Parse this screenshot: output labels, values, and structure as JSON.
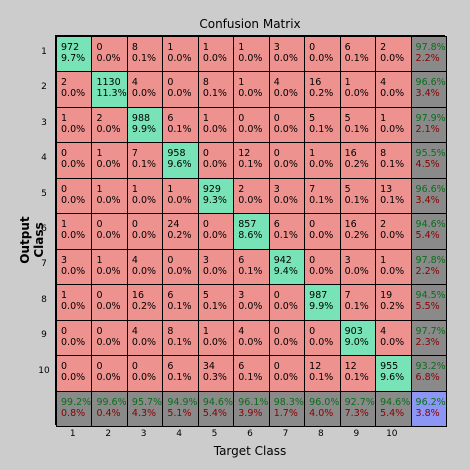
{
  "chart_data": {
    "type": "heatmap",
    "title": "Confusion Matrix",
    "xlabel": "Target Class",
    "ylabel": "Output Class",
    "x_ticks": [
      "1",
      "2",
      "3",
      "4",
      "5",
      "6",
      "7",
      "8",
      "9",
      "10"
    ],
    "y_ticks": [
      "1",
      "2",
      "3",
      "4",
      "5",
      "6",
      "7",
      "8",
      "9",
      "10"
    ],
    "cells": [
      [
        [
          "972",
          "9.7%"
        ],
        [
          "0",
          "0.0%"
        ],
        [
          "8",
          "0.1%"
        ],
        [
          "1",
          "0.0%"
        ],
        [
          "1",
          "0.0%"
        ],
        [
          "1",
          "0.0%"
        ],
        [
          "3",
          "0.0%"
        ],
        [
          "0",
          "0.0%"
        ],
        [
          "6",
          "0.1%"
        ],
        [
          "2",
          "0.0%"
        ]
      ],
      [
        [
          "2",
          "0.0%"
        ],
        [
          "1130",
          "11.3%"
        ],
        [
          "4",
          "0.0%"
        ],
        [
          "0",
          "0.0%"
        ],
        [
          "8",
          "0.1%"
        ],
        [
          "1",
          "0.0%"
        ],
        [
          "4",
          "0.0%"
        ],
        [
          "16",
          "0.2%"
        ],
        [
          "1",
          "0.0%"
        ],
        [
          "4",
          "0.0%"
        ]
      ],
      [
        [
          "1",
          "0.0%"
        ],
        [
          "2",
          "0.0%"
        ],
        [
          "988",
          "9.9%"
        ],
        [
          "6",
          "0.1%"
        ],
        [
          "1",
          "0.0%"
        ],
        [
          "0",
          "0.0%"
        ],
        [
          "0",
          "0.0%"
        ],
        [
          "5",
          "0.1%"
        ],
        [
          "5",
          "0.1%"
        ],
        [
          "1",
          "0.0%"
        ]
      ],
      [
        [
          "0",
          "0.0%"
        ],
        [
          "1",
          "0.0%"
        ],
        [
          "7",
          "0.1%"
        ],
        [
          "958",
          "9.6%"
        ],
        [
          "0",
          "0.0%"
        ],
        [
          "12",
          "0.1%"
        ],
        [
          "0",
          "0.0%"
        ],
        [
          "1",
          "0.0%"
        ],
        [
          "16",
          "0.2%"
        ],
        [
          "8",
          "0.1%"
        ]
      ],
      [
        [
          "0",
          "0.0%"
        ],
        [
          "1",
          "0.0%"
        ],
        [
          "1",
          "0.0%"
        ],
        [
          "1",
          "0.0%"
        ],
        [
          "929",
          "9.3%"
        ],
        [
          "2",
          "0.0%"
        ],
        [
          "3",
          "0.0%"
        ],
        [
          "7",
          "0.1%"
        ],
        [
          "5",
          "0.1%"
        ],
        [
          "13",
          "0.1%"
        ]
      ],
      [
        [
          "1",
          "0.0%"
        ],
        [
          "0",
          "0.0%"
        ],
        [
          "0",
          "0.0%"
        ],
        [
          "24",
          "0.2%"
        ],
        [
          "0",
          "0.0%"
        ],
        [
          "857",
          "8.6%"
        ],
        [
          "6",
          "0.1%"
        ],
        [
          "0",
          "0.0%"
        ],
        [
          "16",
          "0.2%"
        ],
        [
          "2",
          "0.0%"
        ]
      ],
      [
        [
          "3",
          "0.0%"
        ],
        [
          "1",
          "0.0%"
        ],
        [
          "4",
          "0.0%"
        ],
        [
          "0",
          "0.0%"
        ],
        [
          "3",
          "0.0%"
        ],
        [
          "6",
          "0.1%"
        ],
        [
          "942",
          "9.4%"
        ],
        [
          "0",
          "0.0%"
        ],
        [
          "3",
          "0.0%"
        ],
        [
          "1",
          "0.0%"
        ]
      ],
      [
        [
          "1",
          "0.0%"
        ],
        [
          "0",
          "0.0%"
        ],
        [
          "16",
          "0.2%"
        ],
        [
          "6",
          "0.1%"
        ],
        [
          "5",
          "0.1%"
        ],
        [
          "3",
          "0.0%"
        ],
        [
          "0",
          "0.0%"
        ],
        [
          "987",
          "9.9%"
        ],
        [
          "7",
          "0.1%"
        ],
        [
          "19",
          "0.2%"
        ]
      ],
      [
        [
          "0",
          "0.0%"
        ],
        [
          "0",
          "0.0%"
        ],
        [
          "4",
          "0.0%"
        ],
        [
          "8",
          "0.1%"
        ],
        [
          "1",
          "0.0%"
        ],
        [
          "4",
          "0.0%"
        ],
        [
          "0",
          "0.0%"
        ],
        [
          "0",
          "0.0%"
        ],
        [
          "903",
          "9.0%"
        ],
        [
          "4",
          "0.0%"
        ]
      ],
      [
        [
          "0",
          "0.0%"
        ],
        [
          "0",
          "0.0%"
        ],
        [
          "0",
          "0.0%"
        ],
        [
          "6",
          "0.1%"
        ],
        [
          "34",
          "0.3%"
        ],
        [
          "6",
          "0.1%"
        ],
        [
          "0",
          "0.0%"
        ],
        [
          "12",
          "0.1%"
        ],
        [
          "12",
          "0.1%"
        ],
        [
          "955",
          "9.6%"
        ]
      ]
    ],
    "row_summary": [
      [
        "97.8%",
        "2.2%"
      ],
      [
        "96.6%",
        "3.4%"
      ],
      [
        "97.9%",
        "2.1%"
      ],
      [
        "95.5%",
        "4.5%"
      ],
      [
        "96.6%",
        "3.4%"
      ],
      [
        "94.6%",
        "5.4%"
      ],
      [
        "97.8%",
        "2.2%"
      ],
      [
        "94.5%",
        "5.5%"
      ],
      [
        "97.7%",
        "2.3%"
      ],
      [
        "93.2%",
        "6.8%"
      ]
    ],
    "col_summary": [
      [
        "99.2%",
        "0.8%"
      ],
      [
        "99.6%",
        "0.4%"
      ],
      [
        "95.7%",
        "4.3%"
      ],
      [
        "94.9%",
        "5.1%"
      ],
      [
        "94.6%",
        "5.4%"
      ],
      [
        "96.1%",
        "3.9%"
      ],
      [
        "98.3%",
        "1.7%"
      ],
      [
        "96.0%",
        "4.0%"
      ],
      [
        "92.7%",
        "7.3%"
      ],
      [
        "94.6%",
        "5.4%"
      ]
    ],
    "overall": [
      "96.2%",
      "3.8%"
    ],
    "colors": {
      "diagonal": "#77e3b7",
      "off_diagonal": "#ee9290",
      "summary": "#8a8a8a",
      "overall": "#8c97f5",
      "correct_text": "#0a6e1a",
      "error_text": "#8b0000",
      "background": "#cccccc"
    }
  }
}
